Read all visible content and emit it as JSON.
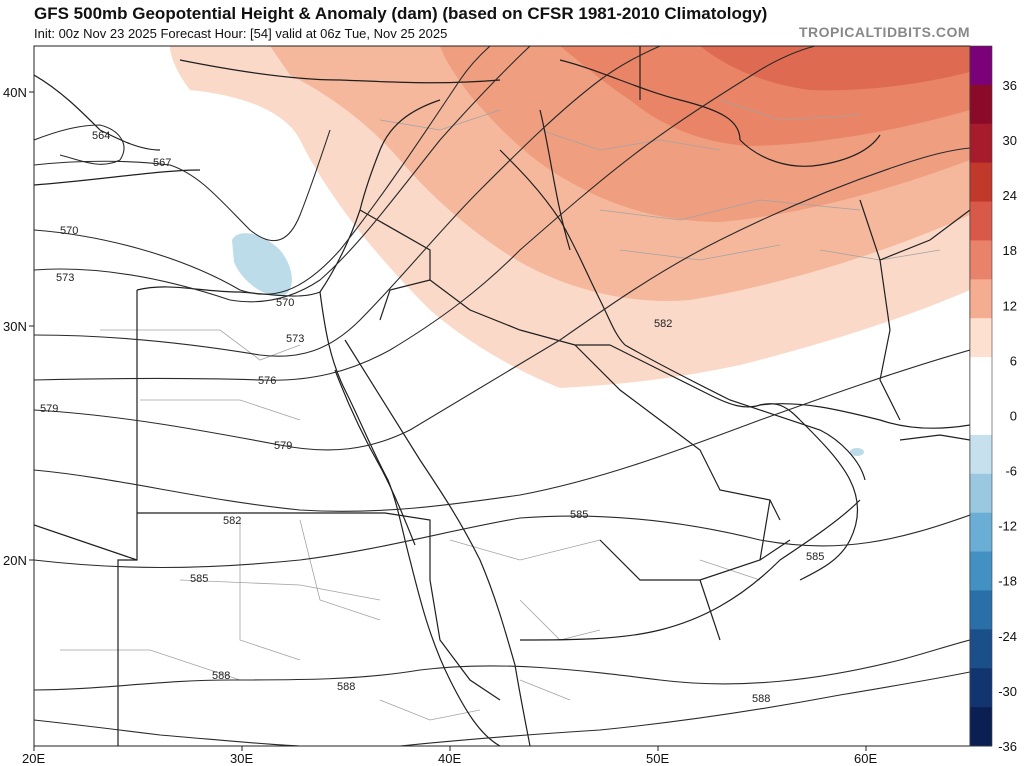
{
  "header": {
    "title": "GFS 500mb Geopotential Height & Anomaly (dam) (based on CFSR 1981-2010 Climatology)",
    "subtitle": "Init: 00z Nov 23 2025   Forecast Hour: [54]   valid at 06z Tue, Nov 25 2025",
    "brand": "TROPICALTIDBITS.COM"
  },
  "map": {
    "region": "Middle East / Northeast Africa",
    "lat_labels": [
      "40N",
      "30N",
      "20N"
    ],
    "lon_labels": [
      "20E",
      "30E",
      "40E",
      "50E",
      "60E"
    ],
    "contour_labels": [
      "564",
      "567",
      "570",
      "573",
      "570",
      "573",
      "576",
      "579",
      "579",
      "582",
      "582",
      "585",
      "585",
      "585",
      "588",
      "588",
      "588"
    ],
    "anomaly_colors": {
      "positive_light": "#fbd9c8",
      "positive_mid": "#f4b293",
      "positive_strong": "#ec8d6b",
      "positive_max": "#de6a52",
      "negative_light": "#bcdcea",
      "land_border": "#222222",
      "admin_border": "#9a9a9a"
    }
  },
  "colorbar": {
    "labels": [
      "36",
      "30",
      "24",
      "18",
      "12",
      "6",
      "0",
      "-6",
      "-12",
      "-18",
      "-24",
      "-30",
      "-36"
    ],
    "colors": [
      "#7a0177",
      "#8b0a2a",
      "#a61c2c",
      "#c0392b",
      "#d8584a",
      "#e8826a",
      "#f5ad92",
      "#fde0d0",
      "#ffffff",
      "#ffffff",
      "#c6e0ee",
      "#9bc8e1",
      "#6aaed5",
      "#4291c2",
      "#2a6fa8",
      "#1b4f8a",
      "#123570",
      "#0b1f52"
    ]
  }
}
